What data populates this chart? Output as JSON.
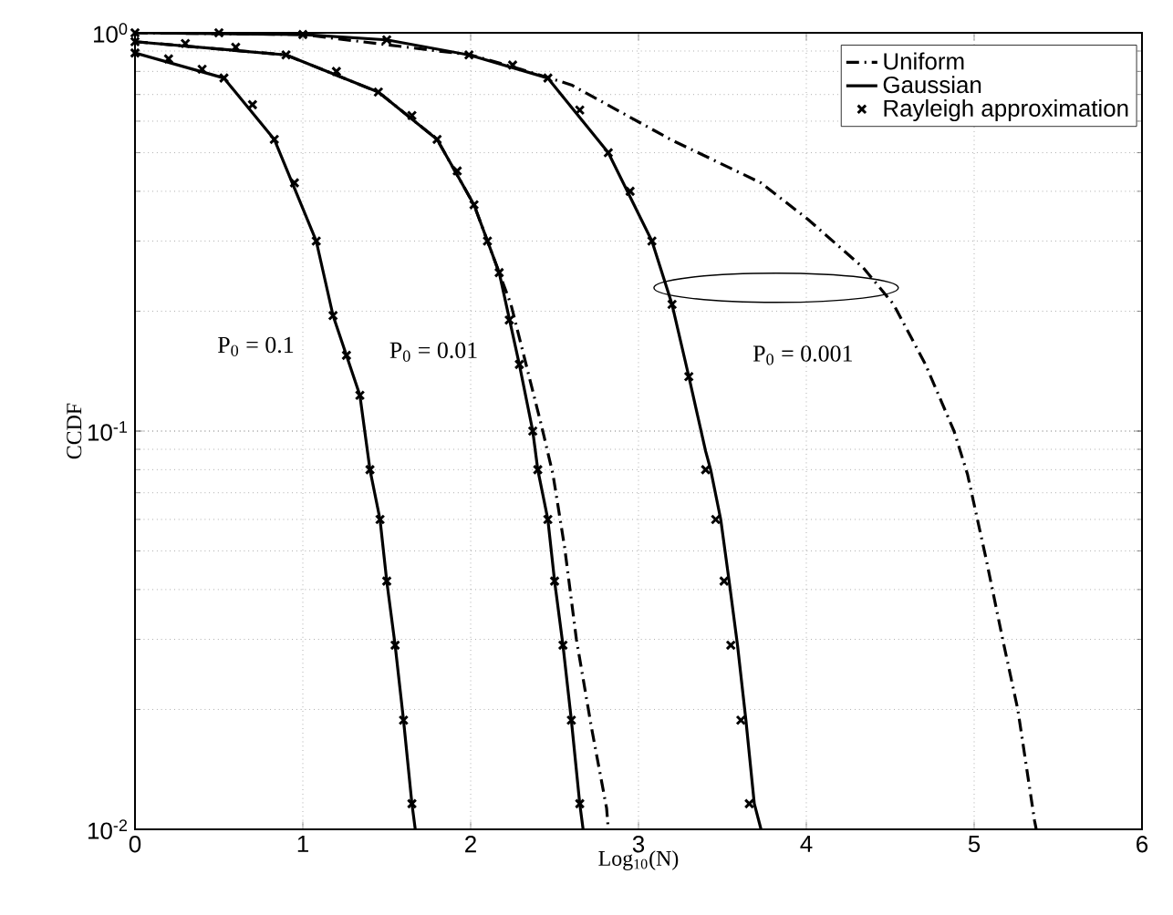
{
  "chart_data": {
    "type": "line",
    "xlabel": "Log$_{10}$(N)",
    "ylabel": "CCDF",
    "log": "y",
    "grid": true,
    "legend": "top right",
    "xlim": [
      0,
      6
    ],
    "ylim": [
      0.01,
      1
    ],
    "xticks": [
      0,
      1,
      2,
      3,
      4,
      5,
      6
    ],
    "yticks": [
      {
        "value": 0.01,
        "label": "10$^{-2}$"
      },
      {
        "value": 0.1,
        "label": "10$^{-1}$"
      },
      {
        "value": 1,
        "label": "10$^{0}$"
      }
    ],
    "series": [
      {
        "name": "Uniform",
        "line_style": "dashdot",
        "marker": "none",
        "color": "#000000",
        "x": [
          0,
          1,
          2,
          2.3,
          2.6,
          3.19,
          3.73,
          4.01,
          4.34,
          4.52,
          4.71,
          4.88,
          4.96,
          5.07,
          5.17,
          5.26,
          5.36,
          5.37
        ],
        "values": [
          1.0,
          0.99,
          0.88,
          0.81,
          0.74,
          0.54,
          0.42,
          0.34,
          0.257,
          0.208,
          0.147,
          0.1,
          0.078,
          0.048,
          0.03,
          0.02,
          0.0105,
          0.01
        ]
      },
      {
        "line_style": "dashdot",
        "marker": "none",
        "color": "#000000",
        "x": [
          0,
          0.9,
          1.45,
          1.8,
          2.02,
          2.14,
          2.24,
          2.42,
          2.49,
          2.56,
          2.63,
          2.72,
          2.81,
          2.82
        ],
        "values": [
          0.95,
          0.88,
          0.71,
          0.54,
          0.37,
          0.27,
          0.208,
          0.104,
          0.078,
          0.051,
          0.03,
          0.018,
          0.0113,
          0.01
        ]
      },
      {
        "name": "Gaussian",
        "line_style": "solid",
        "marker": "none",
        "color": "#000000",
        "x": [
          0,
          0.53,
          0.83,
          1.08,
          1.18,
          1.34,
          1.4,
          1.46,
          1.5,
          1.55,
          1.6,
          1.65,
          1.67
        ],
        "values": [
          0.89,
          0.77,
          0.54,
          0.3,
          0.195,
          0.123,
          0.08,
          0.06,
          0.042,
          0.029,
          0.0188,
          0.0116,
          0.01
        ]
      },
      {
        "line_style": "solid",
        "marker": "none",
        "color": "#000000",
        "x": [
          0,
          0.9,
          1.45,
          1.8,
          2.02,
          2.17,
          2.29,
          2.37,
          2.4,
          2.46,
          2.5,
          2.55,
          2.6,
          2.65,
          2.67
        ],
        "values": [
          0.95,
          0.88,
          0.71,
          0.54,
          0.37,
          0.25,
          0.147,
          0.1,
          0.08,
          0.06,
          0.042,
          0.029,
          0.0188,
          0.0116,
          0.01
        ]
      },
      {
        "line_style": "solid",
        "marker": "none",
        "color": "#000000",
        "x": [
          0,
          1,
          1.5,
          1.99,
          2.46,
          2.82,
          3.08,
          3.2,
          3.3,
          3.4,
          3.43,
          3.49,
          3.54,
          3.59,
          3.64,
          3.69,
          3.73
        ],
        "values": [
          1.0,
          0.99,
          0.96,
          0.88,
          0.77,
          0.5,
          0.3,
          0.208,
          0.137,
          0.089,
          0.08,
          0.06,
          0.042,
          0.029,
          0.0188,
          0.0116,
          0.01
        ]
      },
      {
        "name": "Rayleigh approximation",
        "type": "scatter",
        "marker": "cross",
        "color": "#000000",
        "x": [
          0,
          0.2,
          0.4,
          0.53,
          0.7,
          0.83,
          0.95,
          1.08,
          1.18,
          1.26,
          1.34,
          1.4,
          1.46,
          1.5,
          1.55,
          1.6,
          1.65
        ],
        "values": [
          0.89,
          0.86,
          0.81,
          0.77,
          0.66,
          0.54,
          0.42,
          0.3,
          0.195,
          0.155,
          0.123,
          0.08,
          0.06,
          0.042,
          0.029,
          0.0188,
          0.0116
        ]
      },
      {
        "type": "scatter",
        "marker": "cross",
        "color": "#000000",
        "x": [
          0,
          0.3,
          0.6,
          0.9,
          1.2,
          1.45,
          1.65,
          1.8,
          1.92,
          2.02,
          2.1,
          2.17,
          2.23,
          2.29,
          2.37,
          2.4,
          2.46,
          2.5,
          2.55,
          2.6,
          2.65
        ],
        "values": [
          0.95,
          0.94,
          0.92,
          0.88,
          0.8,
          0.71,
          0.62,
          0.54,
          0.45,
          0.37,
          0.3,
          0.25,
          0.19,
          0.147,
          0.1,
          0.08,
          0.06,
          0.042,
          0.029,
          0.0188,
          0.0116
        ]
      },
      {
        "type": "scatter",
        "marker": "cross",
        "color": "#000000",
        "x": [
          0,
          0.5,
          1,
          1.5,
          1.99,
          2.25,
          2.46,
          2.65,
          2.82,
          2.95,
          3.08,
          3.2,
          3.3,
          3.4,
          3.46,
          3.51,
          3.55,
          3.61,
          3.66
        ],
        "values": [
          1.0,
          1.0,
          0.99,
          0.96,
          0.88,
          0.83,
          0.77,
          0.64,
          0.5,
          0.4,
          0.3,
          0.208,
          0.137,
          0.08,
          0.06,
          0.042,
          0.029,
          0.0188,
          0.0116
        ]
      }
    ],
    "annotations": [
      "P$_{0}$ = 0.1",
      "P$_{0}$ = 0.01",
      "P$_{0}$ = 0.001"
    ]
  }
}
